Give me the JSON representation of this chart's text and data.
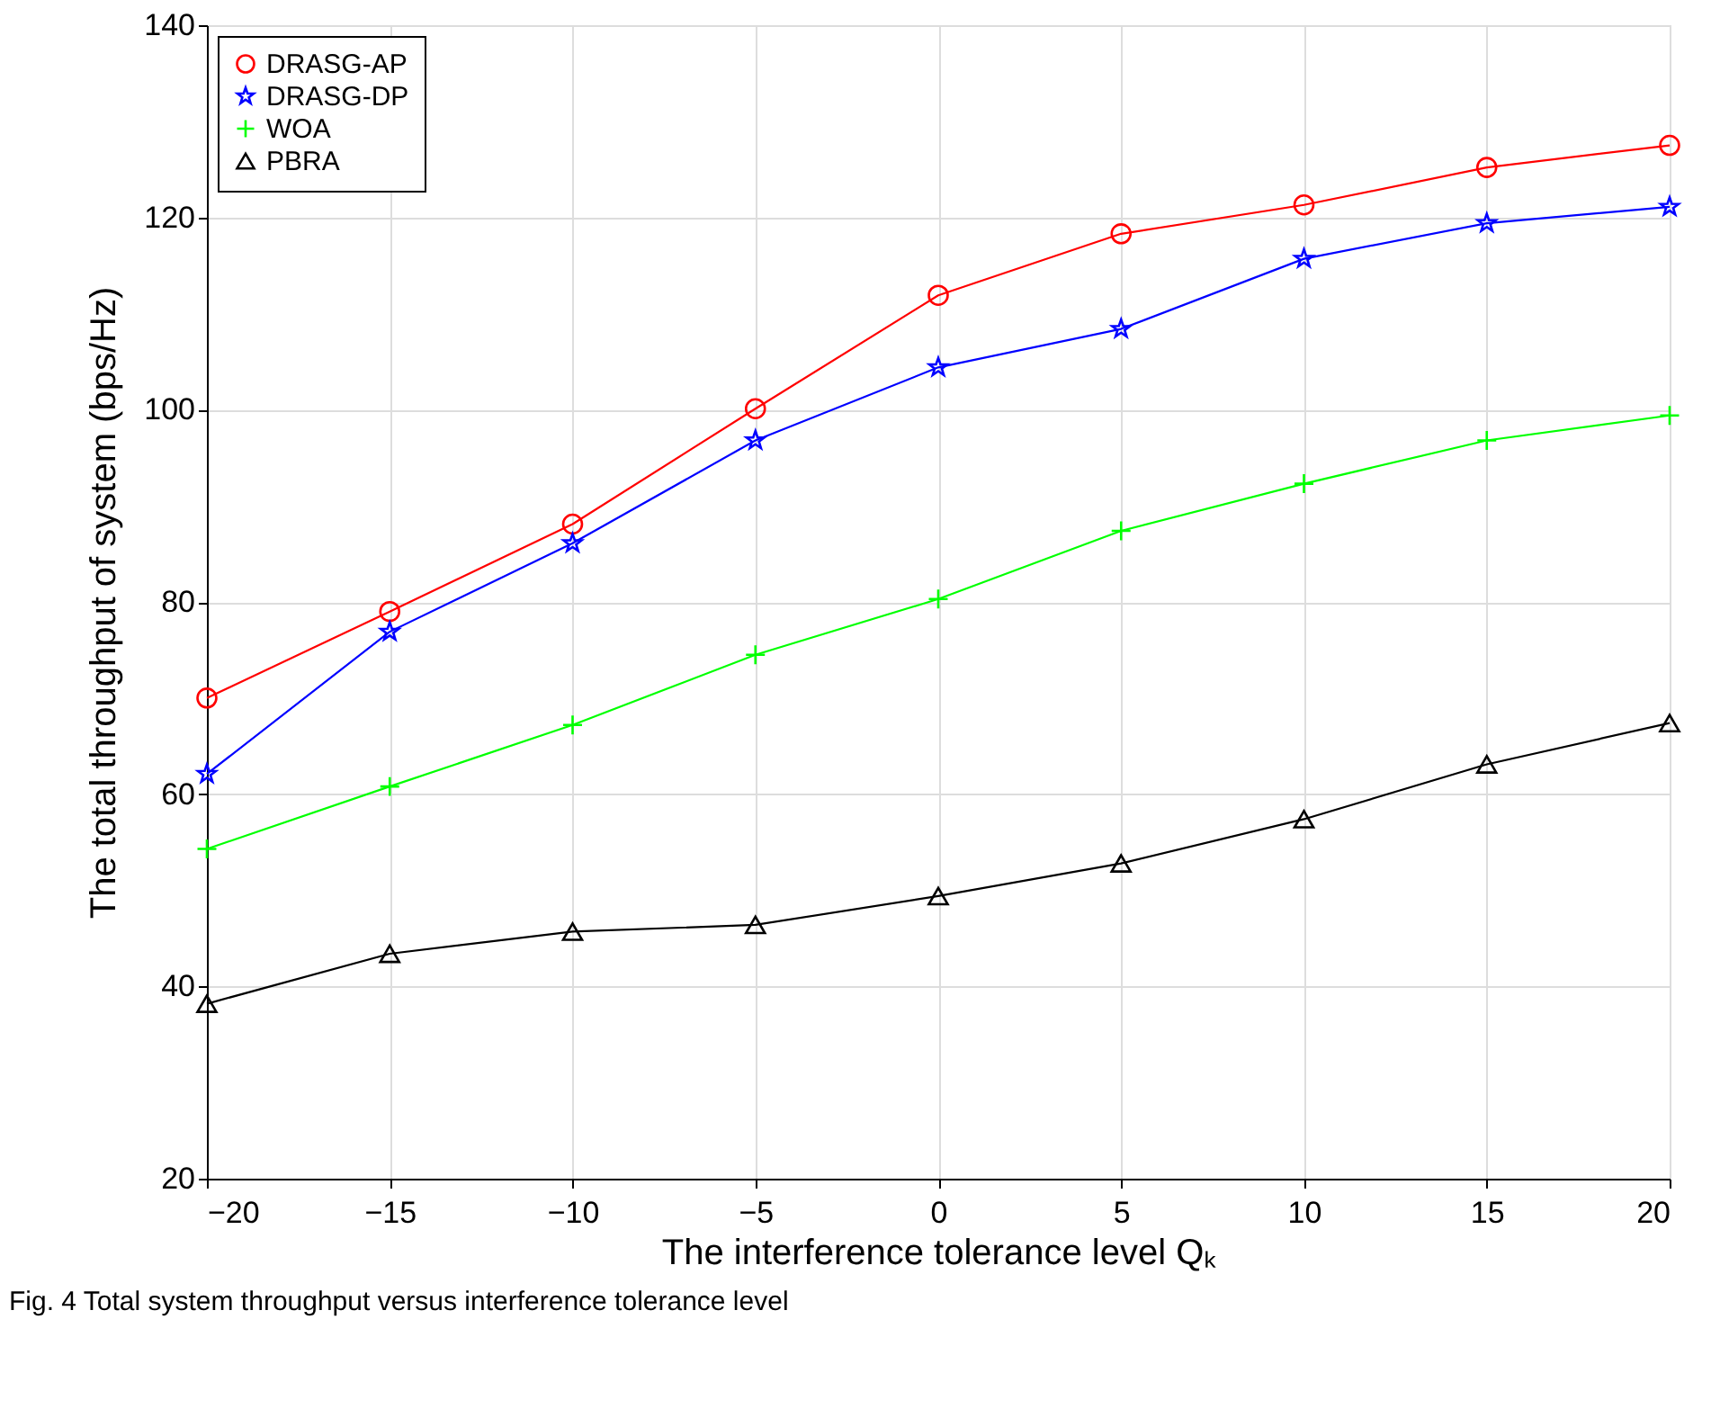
{
  "chart_data": {
    "type": "line",
    "xlabel": "The interference tolerance level Qₖ",
    "ylabel": "The total throughput of system (bps/Hz)",
    "x": [
      -20,
      -15,
      -10,
      -5,
      0,
      5,
      10,
      15,
      20
    ],
    "series": [
      {
        "name": "DRASG-AP",
        "color": "#ff0000",
        "marker": "circle",
        "values": [
          70.0,
          79.0,
          88.1,
          100.1,
          111.9,
          118.3,
          121.3,
          125.2,
          127.5
        ]
      },
      {
        "name": "DRASG-DP",
        "color": "#0000ff",
        "marker": "star",
        "values": [
          62.1,
          76.9,
          86.1,
          96.8,
          104.4,
          108.4,
          115.7,
          119.4,
          121.1
        ]
      },
      {
        "name": "WOA",
        "color": "#00ff00",
        "marker": "cross",
        "values": [
          54.3,
          60.8,
          67.2,
          74.5,
          80.3,
          87.4,
          92.3,
          96.8,
          99.4
        ]
      },
      {
        "name": "PBRA",
        "color": "#000000",
        "marker": "triangle",
        "values": [
          38.2,
          43.4,
          45.7,
          46.4,
          49.4,
          52.8,
          57.4,
          63.1,
          67.4
        ]
      }
    ],
    "xlim": [
      -20,
      20
    ],
    "xticks": [
      -20,
      -15,
      -10,
      -5,
      0,
      5,
      10,
      15,
      20
    ],
    "ylim": [
      20,
      140
    ],
    "yticks": [
      20,
      40,
      60,
      80,
      100,
      120,
      140
    ],
    "grid": true,
    "legend": "top left",
    "line_style": "solid",
    "annotations": [
      "Fig. 4 Total system throughput versus interference tolerance level"
    ]
  }
}
